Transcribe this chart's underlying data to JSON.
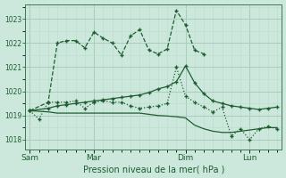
{
  "bg_color": "#cce8dc",
  "grid_color_major": "#aaccbb",
  "grid_color_minor": "#bbddcc",
  "line_color": "#1e5c30",
  "ylabel_values": [
    1018,
    1019,
    1020,
    1021,
    1022,
    1023
  ],
  "ylim": [
    1017.6,
    1023.6
  ],
  "xlabel": "Pression niveau de la mer( hPa )",
  "xtick_labels": [
    "Sam",
    "Mar",
    "Dim",
    "Lun"
  ],
  "xtick_pos": [
    0,
    7,
    17,
    24
  ],
  "xlim": [
    -0.5,
    27.5
  ],
  "num_xpoints": 28,
  "series1_x": [
    0,
    2,
    3,
    4,
    5,
    6,
    7,
    8,
    9,
    10,
    11,
    12,
    13,
    14,
    15,
    16,
    17,
    18,
    19
  ],
  "series1_y": [
    1019.2,
    1019.55,
    1022.0,
    1022.1,
    1022.1,
    1021.8,
    1022.45,
    1022.2,
    1022.0,
    1021.5,
    1022.3,
    1022.55,
    1021.7,
    1021.55,
    1021.75,
    1023.35,
    1022.75,
    1021.7,
    1021.55
  ],
  "series2_x": [
    0,
    2,
    3,
    4,
    5,
    6,
    7,
    8,
    9,
    10,
    11,
    12,
    13,
    14,
    15,
    16,
    17,
    18,
    19,
    20,
    21,
    22,
    23,
    24,
    25,
    26,
    27
  ],
  "series2_y": [
    1019.2,
    1019.3,
    1019.4,
    1019.45,
    1019.5,
    1019.55,
    1019.6,
    1019.65,
    1019.7,
    1019.75,
    1019.8,
    1019.85,
    1019.95,
    1020.1,
    1020.2,
    1020.4,
    1021.05,
    1020.35,
    1019.9,
    1019.6,
    1019.5,
    1019.4,
    1019.35,
    1019.3,
    1019.25,
    1019.3,
    1019.35
  ],
  "series3_x": [
    0,
    2,
    3,
    4,
    5,
    6,
    7,
    8,
    9,
    10,
    11,
    12,
    13,
    14,
    15,
    16,
    17,
    18,
    19,
    20,
    21,
    22,
    23,
    24,
    25,
    26,
    27
  ],
  "series3_y": [
    1019.2,
    1019.15,
    1019.1,
    1019.1,
    1019.1,
    1019.1,
    1019.1,
    1019.1,
    1019.1,
    1019.1,
    1019.1,
    1019.1,
    1019.05,
    1019.0,
    1018.98,
    1018.95,
    1018.9,
    1018.6,
    1018.45,
    1018.35,
    1018.3,
    1018.3,
    1018.35,
    1018.4,
    1018.45,
    1018.5,
    1018.5
  ],
  "series4_x": [
    0,
    1,
    2,
    3,
    4,
    5,
    6,
    7,
    8,
    9,
    10,
    11,
    12,
    13,
    14,
    15,
    16,
    17,
    18,
    19,
    20,
    21,
    22,
    23,
    24,
    25,
    26,
    27
  ],
  "series4_y": [
    1019.2,
    1018.85,
    1019.55,
    1019.55,
    1019.55,
    1019.6,
    1019.3,
    1019.55,
    1019.6,
    1019.55,
    1019.55,
    1019.4,
    1019.3,
    1019.35,
    1019.4,
    1019.5,
    1021.0,
    1019.8,
    1019.55,
    1019.35,
    1019.15,
    1019.35,
    1018.15,
    1018.45,
    1018.0,
    1018.45,
    1018.55,
    1018.45
  ]
}
